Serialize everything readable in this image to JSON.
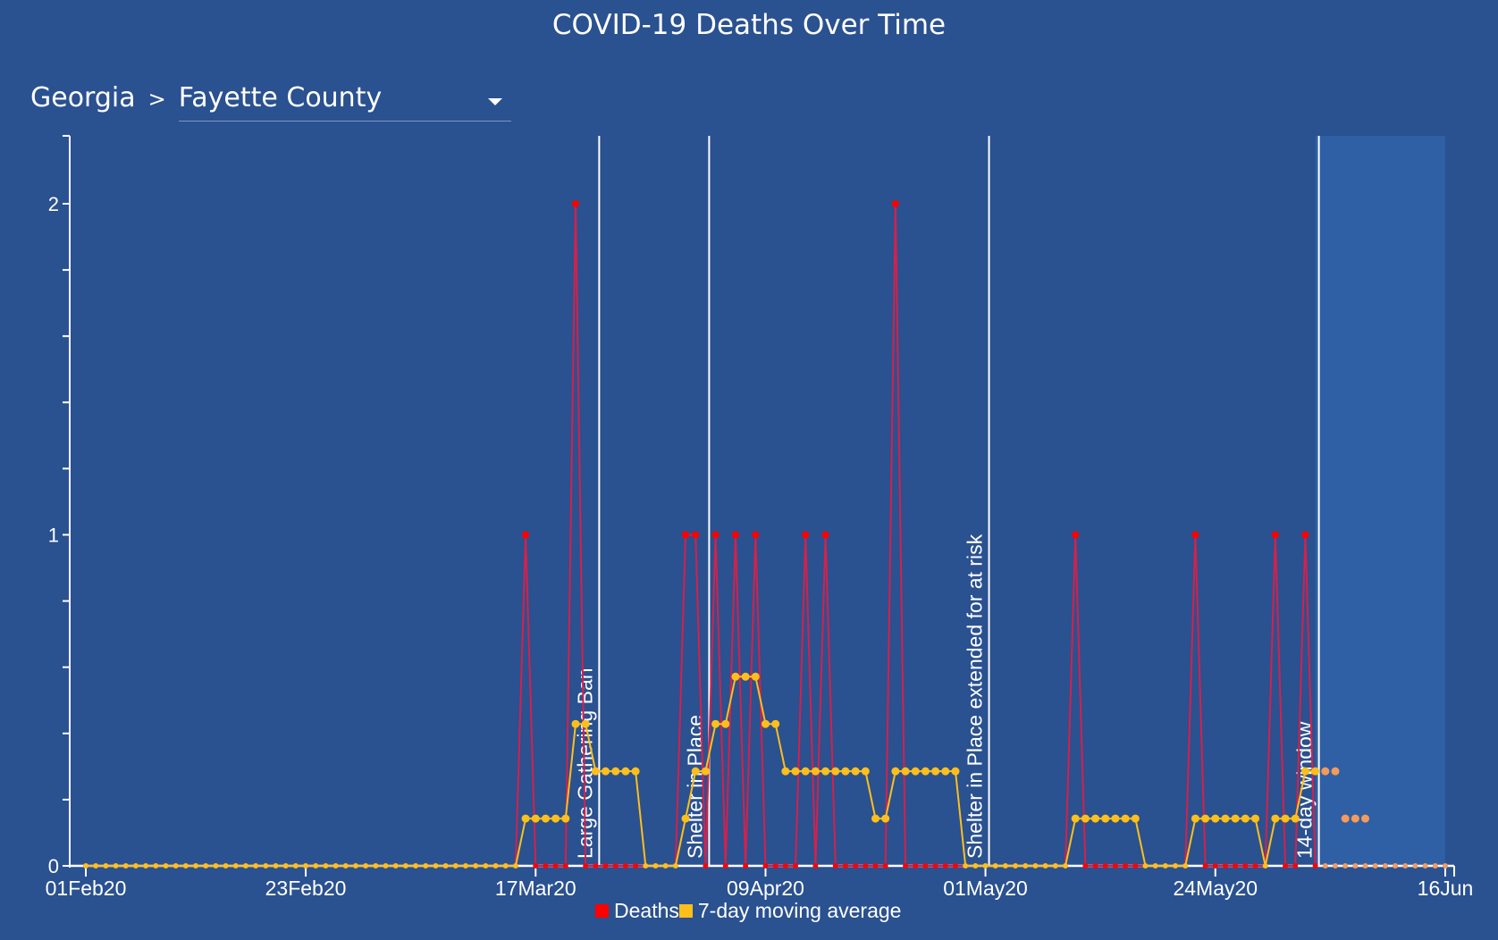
{
  "header": {
    "title": "COVID-19 Deaths Over Time",
    "state": "Georgia",
    "separator": ">",
    "county_selected": "Fayette County"
  },
  "colors": {
    "background": "#2a5190",
    "deaths": "#ff0000",
    "deaths_line": "#d6204a",
    "average": "#ffbf1a",
    "projection": "#f59a5a",
    "window_shade": "#2f5fa5"
  },
  "chart_data": {
    "type": "line",
    "title": "COVID-19 Deaths Over Time",
    "xlabel": "",
    "ylabel": "",
    "x_start": "2020-02-01",
    "x_end": "2020-06-16",
    "ylim": [
      0,
      2.2
    ],
    "y_ticks": [
      0,
      0.2,
      0.4,
      0.6,
      0.8,
      1,
      1.2,
      1.4,
      1.6,
      1.8,
      2
    ],
    "y_tick_labels": [
      "0",
      "",
      "",
      "",
      "",
      "1",
      "",
      "",
      "",
      "",
      "2"
    ],
    "x_ticks": [
      {
        "date": "2020-02-01",
        "label": "01Feb20"
      },
      {
        "date": "2020-02-23",
        "label": "23Feb20"
      },
      {
        "date": "2020-03-17",
        "label": "17Mar20"
      },
      {
        "date": "2020-04-09",
        "label": "09Apr20"
      },
      {
        "date": "2020-05-01",
        "label": "01May20"
      },
      {
        "date": "2020-05-24",
        "label": "24May20"
      },
      {
        "date": "2020-06-16",
        "label": "16Jun"
      }
    ],
    "series": [
      {
        "name": "Deaths",
        "nonzero_days": [
          {
            "date": "2020-03-16",
            "value": 1
          },
          {
            "date": "2020-03-21",
            "value": 2
          },
          {
            "date": "2020-04-01",
            "value": 1
          },
          {
            "date": "2020-04-02",
            "value": 1
          },
          {
            "date": "2020-04-04",
            "value": 1
          },
          {
            "date": "2020-04-06",
            "value": 1
          },
          {
            "date": "2020-04-08",
            "value": 1
          },
          {
            "date": "2020-04-13",
            "value": 1
          },
          {
            "date": "2020-04-15",
            "value": 1
          },
          {
            "date": "2020-04-22",
            "value": 2
          },
          {
            "date": "2020-05-10",
            "value": 1
          },
          {
            "date": "2020-05-22",
            "value": 1
          },
          {
            "date": "2020-05-30",
            "value": 1
          },
          {
            "date": "2020-06-02",
            "value": 1
          }
        ],
        "other_days_value": 0
      },
      {
        "name": "7-day moving average",
        "window_days": 7
      }
    ],
    "annotations": [
      {
        "date": "2020-03-23",
        "label": "Large Gathering Ban"
      },
      {
        "date": "2020-04-03",
        "label": "Shelter in Place"
      },
      {
        "date": "2020-05-01",
        "label": "Shelter in Place extended for at risk"
      },
      {
        "date": "2020-06-03",
        "label": "14-day window"
      }
    ],
    "shaded_region": {
      "from": "2020-06-03",
      "to": "2020-06-16"
    },
    "legend": {
      "position": "bottom-center",
      "entries": [
        "Deaths",
        "7-day moving average"
      ]
    },
    "grid": false
  }
}
